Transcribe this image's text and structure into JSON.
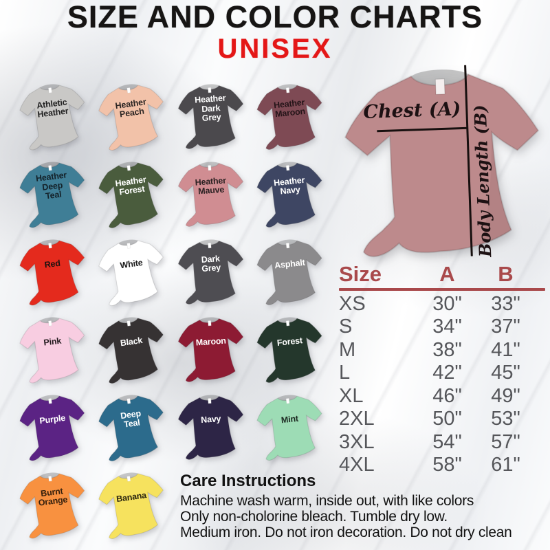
{
  "title": "SIZE AND COLOR CHARTS",
  "subtitle": "UNISEX",
  "colors": {
    "title_black": "#171514",
    "subtitle_red": "#e41717",
    "table_header_red": "#a9494b",
    "table_value_grey": "#55565a",
    "measure_line_black": "#17100f"
  },
  "shirts": [
    {
      "label": "Athletic\nHeather",
      "color": "#c9c8c6",
      "text_color": "#222222"
    },
    {
      "label": "Heather\nPeach",
      "color": "#f2c2a9",
      "text_color": "#2b2523"
    },
    {
      "label": "Heather\nDark\nGrey",
      "color": "#4b494d",
      "text_color": "#ffffff"
    },
    {
      "label": "Heather\nMaroon",
      "color": "#7e4a54",
      "text_color": "#241418"
    },
    {
      "label": "Heather\nDeep\nTeal",
      "color": "#3f7e96",
      "text_color": "#14222a"
    },
    {
      "label": "Heather\nForest",
      "color": "#4a5c3d",
      "text_color": "#ffffff"
    },
    {
      "label": "Heather\nMauve",
      "color": "#d08d92",
      "text_color": "#2b2122"
    },
    {
      "label": "Heather\nNavy",
      "color": "#3e4663",
      "text_color": "#ffffff"
    },
    {
      "label": "Red",
      "color": "#e42a1d",
      "text_color": "#1d1210"
    },
    {
      "label": "White",
      "color": "#ffffff",
      "text_color": "#1c1c1c"
    },
    {
      "label": "Dark\nGrey",
      "color": "#4e4d52",
      "text_color": "#ffffff"
    },
    {
      "label": "Asphalt",
      "color": "#8b8a8c",
      "text_color": "#ffffff"
    },
    {
      "label": "Pink",
      "color": "#f8cde1",
      "text_color": "#231a1e"
    },
    {
      "label": "Black",
      "color": "#363233",
      "text_color": "#ffffff"
    },
    {
      "label": "Maroon",
      "color": "#8d1b33",
      "text_color": "#ffffff"
    },
    {
      "label": "Forest",
      "color": "#24372c",
      "text_color": "#ffffff"
    },
    {
      "label": "Purple",
      "color": "#5b2384",
      "text_color": "#ffffff"
    },
    {
      "label": "Deep\nTeal",
      "color": "#2c6b8c",
      "text_color": "#ffffff"
    },
    {
      "label": "Navy",
      "color": "#2d2546",
      "text_color": "#ffffff"
    },
    {
      "label": "Mint",
      "color": "#9ddcb5",
      "text_color": "#1d2a22"
    },
    {
      "label": "Burnt\nOrange",
      "color": "#f89140",
      "text_color": "#36200d"
    },
    {
      "label": "Banana",
      "color": "#f6e25e",
      "text_color": "#2a250f"
    }
  ],
  "measure_shirt": {
    "color": "#bd8a8c",
    "chest_label": "Chest (A)",
    "length_label": "Body Length (B)"
  },
  "size_table": {
    "headers": {
      "size": "Size",
      "a": "A",
      "b": "B"
    },
    "rows": [
      {
        "size": "XS",
        "a": "30\"",
        "b": "33\""
      },
      {
        "size": "S",
        "a": "34\"",
        "b": "37\""
      },
      {
        "size": "M",
        "a": "38\"",
        "b": "41\""
      },
      {
        "size": "L",
        "a": "42\"",
        "b": "45\""
      },
      {
        "size": "XL",
        "a": "46\"",
        "b": "49\""
      },
      {
        "size": "2XL",
        "a": "50\"",
        "b": "53\""
      },
      {
        "size": "3XL",
        "a": "54\"",
        "b": "57\""
      },
      {
        "size": "4XL",
        "a": "58\"",
        "b": "61\""
      }
    ]
  },
  "care": {
    "title": "Care Instructions",
    "lines": [
      "Machine wash warm, inside out, with like colors",
      "Only non-cholorine bleach. Tumble dry low.",
      "Medium iron. Do not iron decoration. Do not dry clean"
    ]
  },
  "chart_data": {
    "type": "table",
    "title": "SIZE AND COLOR CHARTS — UNISEX",
    "columns": [
      "Size",
      "A",
      "B"
    ],
    "rows": [
      [
        "XS",
        "30\"",
        "33\""
      ],
      [
        "S",
        "34\"",
        "37\""
      ],
      [
        "M",
        "38\"",
        "41\""
      ],
      [
        "L",
        "42\"",
        "45\""
      ],
      [
        "XL",
        "46\"",
        "49\""
      ],
      [
        "2XL",
        "50\"",
        "53\""
      ],
      [
        "3XL",
        "54\"",
        "57\""
      ],
      [
        "4XL",
        "58\"",
        "61\""
      ]
    ],
    "legend": {
      "A": "Chest",
      "B": "Body Length"
    },
    "color_options": [
      "Athletic Heather",
      "Heather Peach",
      "Heather Dark Grey",
      "Heather Maroon",
      "Heather Deep Teal",
      "Heather Forest",
      "Heather Mauve",
      "Heather Navy",
      "Red",
      "White",
      "Dark Grey",
      "Asphalt",
      "Pink",
      "Black",
      "Maroon",
      "Forest",
      "Purple",
      "Deep Teal",
      "Navy",
      "Mint",
      "Burnt Orange",
      "Banana"
    ]
  }
}
